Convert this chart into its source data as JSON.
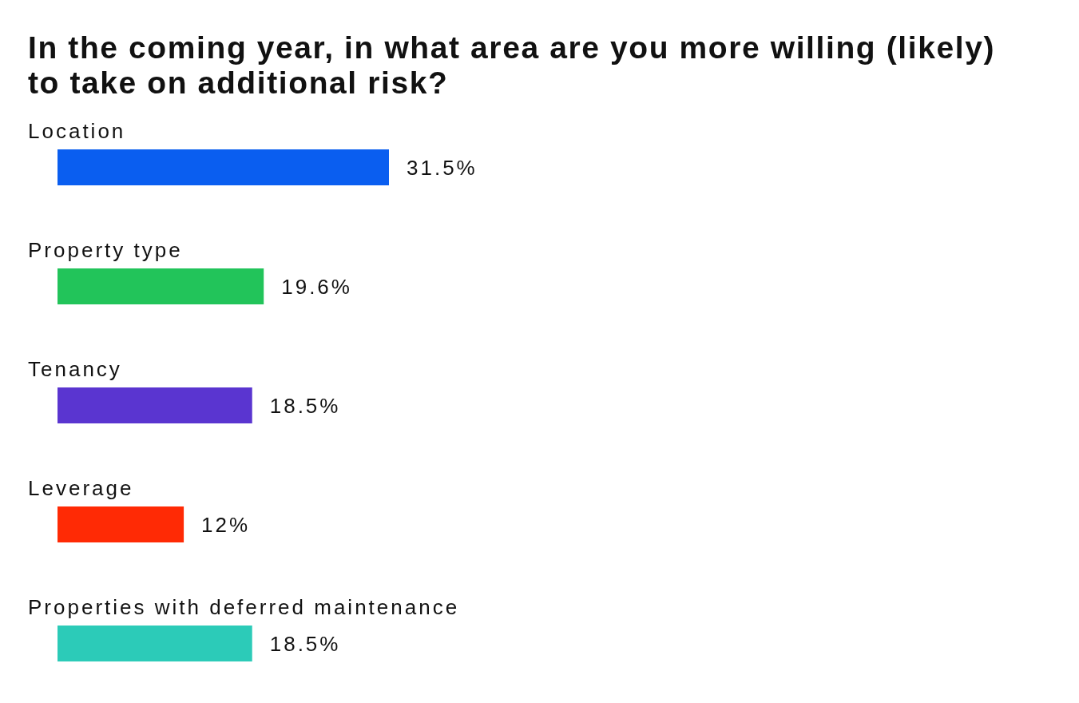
{
  "chart_data": {
    "type": "bar",
    "orientation": "horizontal",
    "title": "In the coming year, in what area are you more willing (likely) to take on additional risk?",
    "categories": [
      "Location",
      "Property type",
      "Tenancy",
      "Leverage",
      "Properties with deferred maintenance"
    ],
    "values": [
      31.5,
      19.6,
      18.5,
      12,
      18.5
    ],
    "value_labels": [
      "31.5%",
      "19.6%",
      "18.5%",
      "12%",
      "18.5%"
    ],
    "colors": [
      "#0a5ef0",
      "#22c45a",
      "#5a35d0",
      "#ff2a05",
      "#2ccbb8"
    ]
  }
}
